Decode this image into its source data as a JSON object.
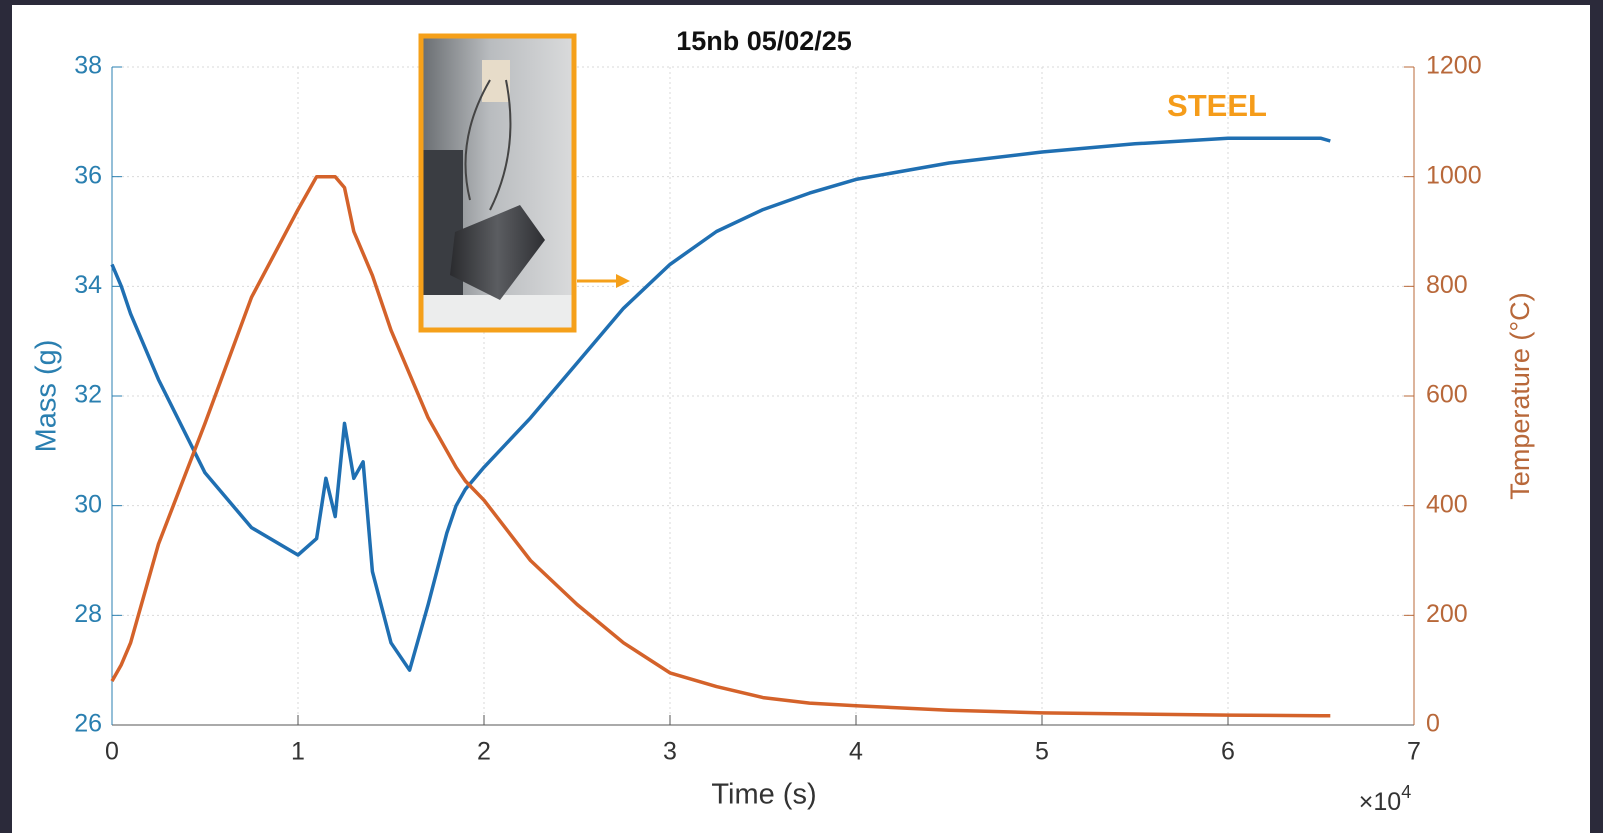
{
  "chart_data": {
    "type": "line",
    "title": "15nb 05/02/25",
    "x_label": "Time (s)",
    "x_multiplier": {
      "base": "×10",
      "exponent": "4"
    },
    "y_label": "Mass (g)",
    "y2_label": "Temperature (°C)",
    "annotation": "STEEL",
    "x": [
      0,
      0.05,
      0.1,
      0.25,
      0.5,
      0.75,
      1.0,
      1.1,
      1.15,
      1.2,
      1.25,
      1.3,
      1.35,
      1.4,
      1.5,
      1.6,
      1.7,
      1.8,
      1.85,
      1.9,
      2.0,
      2.25,
      2.5,
      2.75,
      3.0,
      3.25,
      3.5,
      3.75,
      4.0,
      4.5,
      5.0,
      5.5,
      6.0,
      6.5,
      6.55
    ],
    "series": [
      {
        "name": "Mass (g)",
        "color": "#1f6fb2",
        "axis": "y",
        "values": [
          34.4,
          34.0,
          33.5,
          32.3,
          30.6,
          29.6,
          29.1,
          29.4,
          30.5,
          29.8,
          31.5,
          30.5,
          30.8,
          28.8,
          27.5,
          27.0,
          28.2,
          29.5,
          30.0,
          30.3,
          30.7,
          31.6,
          32.6,
          33.6,
          34.4,
          35.0,
          35.4,
          35.7,
          35.95,
          36.25,
          36.45,
          36.6,
          36.7,
          36.7,
          36.65
        ]
      },
      {
        "name": "Temperature (°C)",
        "color": "#d4622a",
        "axis": "y2",
        "values": [
          80,
          110,
          150,
          330,
          550,
          780,
          940,
          1000,
          1000,
          1000,
          980,
          900,
          860,
          820,
          720,
          640,
          560,
          500,
          470,
          445,
          410,
          300,
          220,
          150,
          95,
          70,
          50,
          40,
          35,
          27,
          22,
          20,
          18,
          17,
          17
        ]
      }
    ],
    "xlim": [
      0,
      7
    ],
    "xticks": [
      0,
      1,
      2,
      3,
      4,
      5,
      6,
      7
    ],
    "ylim": [
      26,
      38
    ],
    "yticks": [
      26,
      28,
      30,
      32,
      34,
      36,
      38
    ],
    "y2lim": [
      0,
      1200
    ],
    "y2ticks": [
      0,
      200,
      400,
      600,
      800,
      1000,
      1200
    ],
    "grid": true,
    "y_axis_color": "#2a7fb0",
    "y2_axis_color": "#b8683a",
    "annotation_color": "#f59c1a"
  }
}
